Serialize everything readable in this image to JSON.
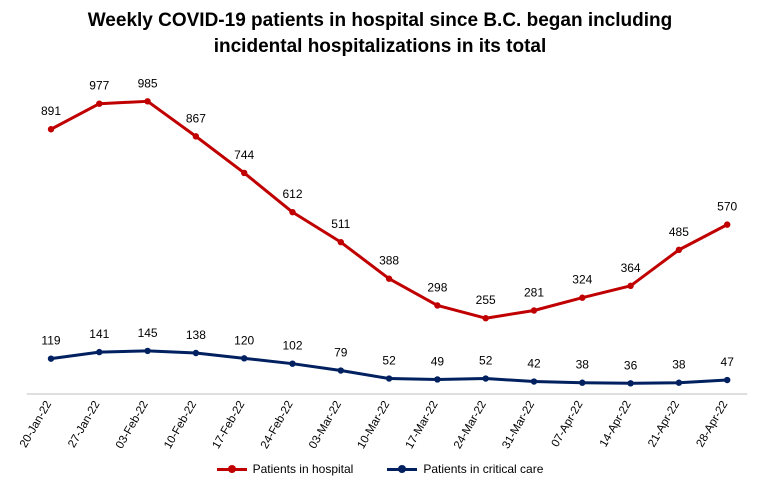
{
  "chart_data": {
    "type": "line",
    "title_lines": [
      "Weekly COVID-19 patients in hospital since B.C. began including",
      "incidental hospitalizations in its total"
    ],
    "categories": [
      "20-Jan-22",
      "27-Jan-22",
      "03-Feb-22",
      "10-Feb-22",
      "17-Feb-22",
      "24-Feb-22",
      "03-Mar-22",
      "10-Mar-22",
      "17-Mar-22",
      "24-Mar-22",
      "31-Mar-22",
      "07-Apr-22",
      "14-Apr-22",
      "21-Apr-22",
      "28-Apr-22"
    ],
    "series": [
      {
        "name": "Patients in hospital",
        "color": "#C00000",
        "values": [
          891,
          977,
          985,
          867,
          744,
          612,
          511,
          388,
          298,
          255,
          281,
          324,
          364,
          485,
          570
        ]
      },
      {
        "name": "Patients in critical care",
        "color": "#002060",
        "values": [
          119,
          141,
          145,
          138,
          120,
          102,
          79,
          52,
          49,
          52,
          42,
          38,
          36,
          38,
          47
        ]
      }
    ],
    "ylim": [
      0,
      1050
    ],
    "grid": false,
    "legend_position": "bottom",
    "data_labels": true
  }
}
